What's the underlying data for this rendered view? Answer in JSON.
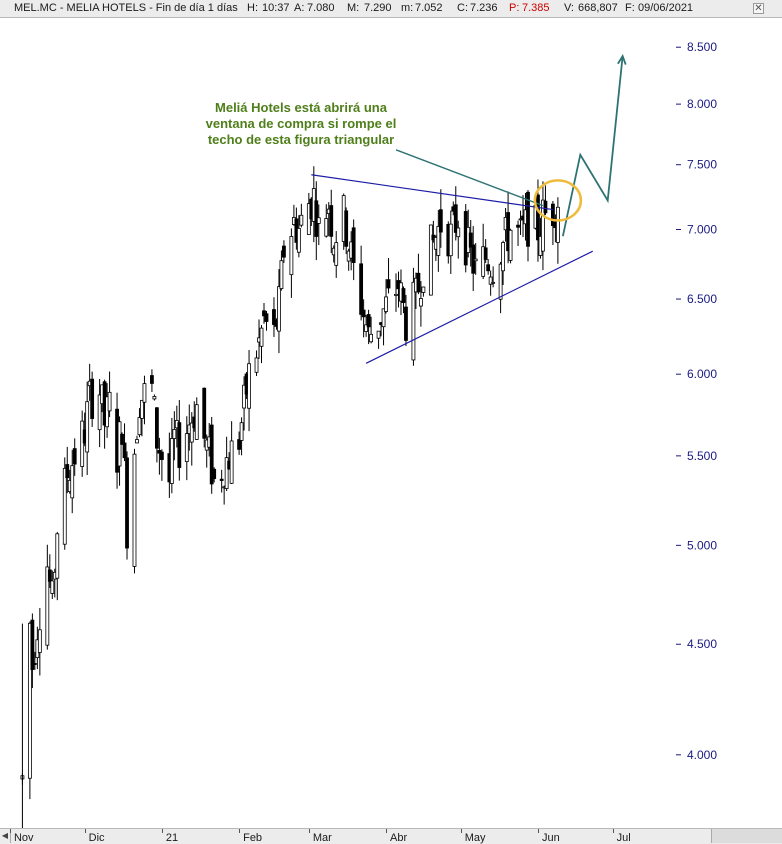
{
  "header": {
    "symbol": "MEL.MC - MELIA HOTELS - Fin de día 1 días",
    "h_label": "H:",
    "h_value": "10:37",
    "a_label": "A:",
    "a_value": "7.080",
    "m_label": "M:",
    "m_value": "7.290",
    "min_label": "m:",
    "min_value": "7.052",
    "c_label": "C:",
    "c_value": "7.236",
    "p_label": "P:",
    "p_value": "7.385",
    "v_label": "V:",
    "v_value": "668,807",
    "f_label": "F:",
    "f_value": "09/06/2021",
    "close_glyph": "✕"
  },
  "annotation": {
    "text": "Meliá Hotels está abrirá una ventana de compra si rompe el techo de esta figura triangular",
    "color": "#4f7f1a"
  },
  "colors": {
    "candles": "#000000",
    "trendlines": "#1c1ca8",
    "projection": "#2e7373",
    "highlight_circle": "#f0bb3a",
    "axis_text": "#1a1a80"
  },
  "chart_data": {
    "type": "candlestick",
    "title": "MEL.MC - MELIA HOTELS - Fin de día 1 días",
    "y_scale": "log",
    "ylim": [
      3.7,
      8.75
    ],
    "y_ticks": [
      "4.000",
      "4.500",
      "5.000",
      "5.500",
      "6.000",
      "6.500",
      "7.000",
      "7.500",
      "8.000",
      "8.500"
    ],
    "y_tick_values": [
      4.0,
      4.5,
      5.0,
      5.5,
      6.0,
      6.5,
      7.0,
      7.5,
      8.0,
      8.5
    ],
    "x_labels": [
      "Nov",
      "Dic",
      "21",
      "Feb",
      "Mar",
      "Abr",
      "May",
      "Jun",
      "Jul"
    ],
    "x_label_dates": [
      "2020-11-01",
      "2020-12-01",
      "2021-01-01",
      "2021-02-01",
      "2021-03-01",
      "2021-04-01",
      "2021-05-01",
      "2021-06-01",
      "2021-07-01"
    ],
    "x_range": [
      "2020-10-28",
      "2021-07-20"
    ],
    "last_bar": {
      "date": "2021-06-09",
      "open": 7.08,
      "high": 7.29,
      "low": 7.052,
      "close": 7.236
    },
    "price_path": [
      [
        "2020-11-06",
        3.9
      ],
      [
        "2020-11-09",
        4.6
      ],
      [
        "2020-11-10",
        4.4
      ],
      [
        "2020-11-12",
        4.6
      ],
      [
        "2020-11-16",
        4.9
      ],
      [
        "2020-11-18",
        4.7
      ],
      [
        "2020-11-20",
        5.1
      ],
      [
        "2020-11-24",
        5.4
      ],
      [
        "2020-11-27",
        5.5
      ],
      [
        "2020-12-01",
        5.65
      ],
      [
        "2020-12-03",
        5.85
      ],
      [
        "2020-12-07",
        5.9
      ],
      [
        "2020-12-09",
        5.7
      ],
      [
        "2020-12-11",
        5.8
      ],
      [
        "2020-12-14",
        5.5
      ],
      [
        "2020-12-16",
        5.7
      ],
      [
        "2020-12-18",
        5.1
      ],
      [
        "2020-12-21",
        5.55
      ],
      [
        "2020-12-23",
        5.85
      ],
      [
        "2020-12-28",
        5.9
      ],
      [
        "2020-12-30",
        5.6
      ],
      [
        "2021-01-04",
        5.35
      ],
      [
        "2021-01-06",
        5.6
      ],
      [
        "2021-01-08",
        5.55
      ],
      [
        "2021-01-12",
        5.7
      ],
      [
        "2021-01-15",
        5.8
      ],
      [
        "2021-01-18",
        5.6
      ],
      [
        "2021-01-20",
        5.5
      ],
      [
        "2021-01-22",
        5.35
      ],
      [
        "2021-01-26",
        5.45
      ],
      [
        "2021-01-28",
        5.5
      ],
      [
        "2021-02-01",
        5.6
      ],
      [
        "2021-02-03",
        5.8
      ],
      [
        "2021-02-05",
        6.0
      ],
      [
        "2021-02-09",
        6.2
      ],
      [
        "2021-02-11",
        6.35
      ],
      [
        "2021-02-15",
        6.25
      ],
      [
        "2021-02-17",
        6.45
      ],
      [
        "2021-02-19",
        6.85
      ],
      [
        "2021-02-23",
        7.05
      ],
      [
        "2021-02-25",
        7.0
      ],
      [
        "2021-03-01",
        7.2
      ],
      [
        "2021-03-03",
        7.25
      ],
      [
        "2021-03-05",
        7.0
      ],
      [
        "2021-03-09",
        7.2
      ],
      [
        "2021-03-11",
        6.95
      ],
      [
        "2021-03-15",
        7.1
      ],
      [
        "2021-03-17",
        6.9
      ],
      [
        "2021-03-19",
        6.7
      ],
      [
        "2021-03-23",
        6.4
      ],
      [
        "2021-03-25",
        6.25
      ],
      [
        "2021-03-29",
        6.35
      ],
      [
        "2021-04-01",
        6.45
      ],
      [
        "2021-04-06",
        6.6
      ],
      [
        "2021-04-09",
        6.35
      ],
      [
        "2021-04-13",
        6.5
      ],
      [
        "2021-04-16",
        6.75
      ],
      [
        "2021-04-20",
        6.9
      ],
      [
        "2021-04-23",
        7.05
      ],
      [
        "2021-04-27",
        6.95
      ],
      [
        "2021-04-30",
        7.1
      ],
      [
        "2021-05-04",
        6.85
      ],
      [
        "2021-05-07",
        6.7
      ],
      [
        "2021-05-11",
        6.8
      ],
      [
        "2021-05-14",
        6.75
      ],
      [
        "2021-05-18",
        6.9
      ],
      [
        "2021-05-21",
        7.0
      ],
      [
        "2021-05-25",
        6.95
      ],
      [
        "2021-05-28",
        7.05
      ],
      [
        "2021-06-01",
        7.0
      ],
      [
        "2021-06-03",
        7.1
      ],
      [
        "2021-06-07",
        7.15
      ],
      [
        "2021-06-09",
        7.236
      ]
    ],
    "triangle": {
      "upper": [
        [
          "2021-03-02",
          7.42
        ],
        [
          "2021-06-07",
          7.15
        ]
      ],
      "lower": [
        [
          "2021-03-24",
          6.07
        ],
        [
          "2021-06-23",
          6.84
        ]
      ]
    },
    "annotation_arrow": [
      [
        "2021-04-05",
        7.62
      ],
      [
        "2021-06-03",
        7.18
      ]
    ],
    "projection": [
      [
        "2021-06-11",
        6.95
      ],
      [
        "2021-06-18",
        7.58
      ],
      [
        "2021-06-29",
        7.22
      ],
      [
        "2021-07-05",
        8.42
      ]
    ],
    "highlight_circle": {
      "date": "2021-06-09",
      "value": 7.22
    }
  }
}
